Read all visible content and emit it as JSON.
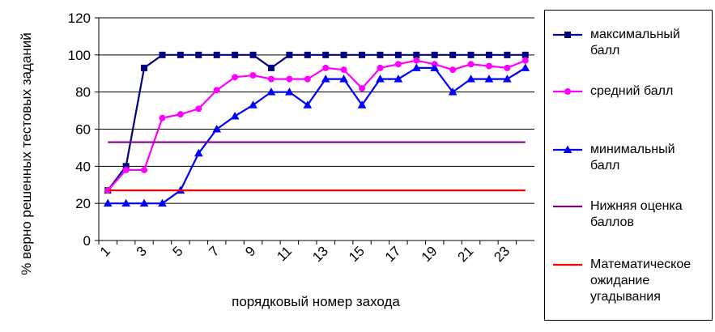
{
  "chart_data": {
    "type": "line",
    "x_label": "порядковый номер захода",
    "y_label": "% верно решенных тестовых заданий",
    "categories": [
      1,
      null,
      3,
      null,
      5,
      null,
      7,
      null,
      9,
      null,
      11,
      null,
      13,
      null,
      15,
      null,
      17,
      null,
      19,
      null,
      21,
      null,
      23,
      null
    ],
    "ylim": [
      0,
      120
    ],
    "yticks": [
      0,
      20,
      40,
      60,
      80,
      100,
      120
    ],
    "grid": true,
    "legend": "right",
    "series": [
      {
        "name": "максимальный балл",
        "color": "#000080",
        "marker": "square",
        "values": [
          27,
          40,
          93,
          100,
          100,
          100,
          100,
          100,
          100,
          93,
          100,
          100,
          100,
          100,
          100,
          100,
          100,
          100,
          100,
          100,
          100,
          100,
          100,
          100
        ]
      },
      {
        "name": "средний балл",
        "color": "#ff00ff",
        "marker": "circle",
        "values": [
          27,
          38,
          38,
          66,
          68,
          71,
          81,
          88,
          89,
          87,
          87,
          87,
          93,
          92,
          82,
          93,
          95,
          97,
          95,
          92,
          95,
          94,
          93,
          97
        ]
      },
      {
        "name": "минимальный балл",
        "color": "#0000ff",
        "marker": "triangle",
        "values": [
          20,
          20,
          20,
          20,
          27,
          47,
          60,
          67,
          73,
          80,
          80,
          73,
          87,
          87,
          73,
          87,
          87,
          93,
          93,
          80,
          87,
          87,
          87,
          93
        ]
      },
      {
        "name": "Нижняя оценка баллов",
        "color": "#800080",
        "marker": "none",
        "values": [
          53,
          53,
          53,
          53,
          53,
          53,
          53,
          53,
          53,
          53,
          53,
          53,
          53,
          53,
          53,
          53,
          53,
          53,
          53,
          53,
          53,
          53,
          53,
          53
        ]
      },
      {
        "name": "Математическое ожидание угадывания",
        "color": "#ff0000",
        "marker": "none",
        "values": [
          27,
          27,
          27,
          27,
          27,
          27,
          27,
          27,
          27,
          27,
          27,
          27,
          27,
          27,
          27,
          27,
          27,
          27,
          27,
          27,
          27,
          27,
          27,
          27
        ]
      }
    ]
  }
}
